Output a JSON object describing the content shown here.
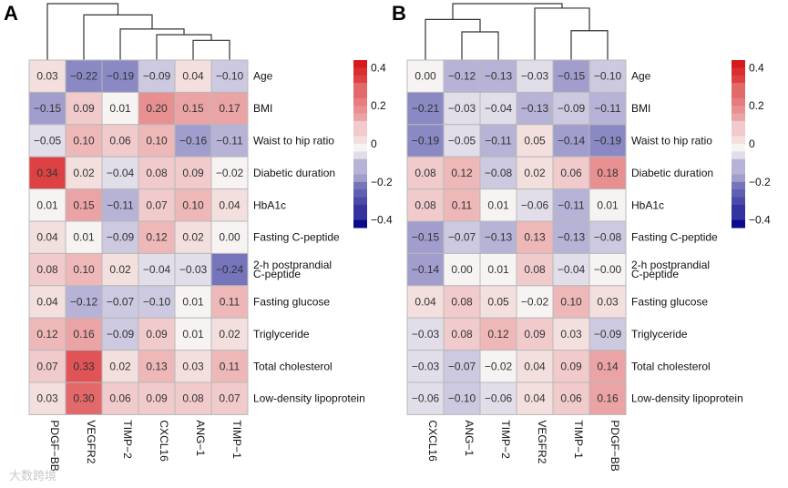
{
  "chart_data": [
    {
      "type": "heatmap",
      "panel": "A",
      "columns": [
        "PDGF−BB",
        "VEGFR2",
        "TIMP−2",
        "CXCL16",
        "ANG−1",
        "TIMP−1"
      ],
      "rows": [
        "Age",
        "BMI",
        "Waist to hip ratio",
        "Diabetic duration",
        "HbA1c",
        "Fasting C-peptide",
        "2-h postprandial C-peptide",
        "Fasting glucose",
        "Triglyceride",
        "Total cholesterol",
        "Low-density lipoprotein"
      ],
      "values": [
        [
          0.03,
          -0.22,
          -0.19,
          -0.09,
          0.04,
          -0.1
        ],
        [
          -0.15,
          0.09,
          0.01,
          0.2,
          0.15,
          0.17
        ],
        [
          -0.05,
          0.1,
          0.06,
          0.1,
          -0.16,
          -0.11
        ],
        [
          0.34,
          0.02,
          -0.04,
          0.08,
          0.09,
          -0.02
        ],
        [
          0.01,
          0.15,
          -0.11,
          0.07,
          0.1,
          0.04
        ],
        [
          0.04,
          0.01,
          -0.09,
          0.12,
          0.02,
          0.0
        ],
        [
          0.08,
          0.1,
          0.02,
          -0.04,
          -0.03,
          -0.24
        ],
        [
          0.04,
          -0.12,
          -0.07,
          -0.1,
          0.01,
          0.11
        ],
        [
          0.12,
          0.16,
          -0.09,
          0.09,
          0.01,
          0.02
        ],
        [
          0.07,
          0.33,
          0.02,
          0.13,
          0.03,
          0.11
        ],
        [
          0.03,
          0.3,
          0.06,
          0.09,
          0.08,
          0.07
        ]
      ],
      "labels": [
        "0.03",
        "−0.22",
        "−0.19",
        "−0.09",
        "0.04",
        "−0.10",
        "−0.15",
        "0.09",
        "0.01",
        "0.20",
        "0.15",
        "0.17",
        "−0.05",
        "0.10",
        "0.06",
        "0.10",
        "−0.16",
        "−0.11",
        "0.34",
        "0.02",
        "−0.04",
        "0.08",
        "0.09",
        "−0.02",
        "0.01",
        "0.15",
        "−0.11",
        "0.07",
        "0.10",
        "0.04",
        "0.04",
        "0.01",
        "−0.09",
        "0.12",
        "0.02",
        "0.00",
        "0.08",
        "0.10",
        "0.02",
        "−0.04",
        "−0.03",
        "−0.24",
        "0.04",
        "−0.12",
        "−0.07",
        "−0.10",
        "0.01",
        "0.11",
        "0.12",
        "0.16",
        "−0.09",
        "0.09",
        "0.01",
        "0.02",
        "0.07",
        "0.33",
        "0.02",
        "0.13",
        "0.03",
        "0.11",
        "0.03",
        "0.30",
        "0.06",
        "0.09",
        "0.08",
        "0.07"
      ],
      "dendrogram": [
        [
          4,
          5,
          0.35
        ],
        [
          3,
          6,
          0.45
        ],
        [
          2,
          7,
          0.55
        ],
        [
          1,
          8,
          0.8
        ],
        [
          0,
          9,
          1.0
        ]
      ],
      "legend": {
        "ticks": [
          "0.4",
          "0.2",
          "0",
          "−0.2",
          "−0.4"
        ],
        "tick_values": [
          0.4,
          0.2,
          0,
          -0.2,
          -0.4
        ],
        "range": [
          -0.44,
          0.44
        ]
      }
    },
    {
      "type": "heatmap",
      "panel": "B",
      "columns": [
        "CXCL16",
        "ANG−1",
        "TIMP−2",
        "VEGFR2",
        "TIMP−1",
        "PDGF−BB"
      ],
      "rows": [
        "Age",
        "BMI",
        "Waist to hip ratio",
        "Diabetic duration",
        "HbA1c",
        "Fasting C-peptide",
        "2-h postprandial C-peptide",
        "Fasting glucose",
        "Triglyceride",
        "Total cholesterol",
        "Low-density lipoprotein"
      ],
      "values": [
        [
          0.0,
          -0.12,
          -0.13,
          -0.03,
          -0.15,
          -0.1
        ],
        [
          -0.21,
          -0.03,
          -0.04,
          -0.13,
          -0.09,
          -0.11
        ],
        [
          -0.19,
          -0.05,
          -0.11,
          0.05,
          -0.14,
          -0.19
        ],
        [
          0.08,
          0.12,
          -0.08,
          0.02,
          0.06,
          0.18
        ],
        [
          0.08,
          0.11,
          0.01,
          -0.06,
          -0.11,
          0.01
        ],
        [
          -0.15,
          -0.07,
          -0.13,
          0.13,
          -0.13,
          -0.08
        ],
        [
          -0.14,
          0.0,
          0.01,
          0.08,
          -0.04,
          -0.0
        ],
        [
          0.04,
          0.08,
          0.05,
          -0.02,
          0.1,
          0.03
        ],
        [
          -0.03,
          0.08,
          0.12,
          0.09,
          0.03,
          -0.09
        ],
        [
          -0.03,
          -0.07,
          -0.02,
          0.04,
          0.09,
          0.14
        ],
        [
          -0.06,
          -0.1,
          -0.06,
          0.04,
          0.06,
          0.16
        ]
      ],
      "labels": [
        "0.00",
        "−0.12",
        "−0.13",
        "−0.03",
        "−0.15",
        "−0.10",
        "−0.21",
        "−0.03",
        "−0.04",
        "−0.13",
        "−0.09",
        "−0.11",
        "−0.19",
        "−0.05",
        "−0.11",
        "0.05",
        "−0.14",
        "−0.19",
        "0.08",
        "0.12",
        "−0.08",
        "0.02",
        "0.06",
        "0.18",
        "0.08",
        "0.11",
        "0.01",
        "−0.06",
        "−0.11",
        "0.01",
        "−0.15",
        "−0.07",
        "−0.13",
        "0.13",
        "−0.13",
        "−0.08",
        "−0.14",
        "0.00",
        "0.01",
        "0.08",
        "−0.04",
        "−0.00",
        "0.04",
        "0.08",
        "0.05",
        "−0.02",
        "0.10",
        "0.03",
        "−0.03",
        "0.08",
        "0.12",
        "0.09",
        "0.03",
        "−0.09",
        "−0.03",
        "−0.07",
        "−0.02",
        "0.04",
        "0.09",
        "0.14",
        "−0.06",
        "−0.10",
        "−0.06",
        "0.04",
        "0.06",
        "0.16"
      ],
      "dendrogram": [
        [
          1,
          2,
          0.5
        ],
        [
          4,
          5,
          0.52
        ],
        [
          0,
          6,
          0.72
        ],
        [
          3,
          7,
          0.92
        ],
        [
          8,
          9,
          1.0
        ]
      ],
      "legend": {
        "ticks": [
          "0.4",
          "0.2",
          "0",
          "−0.2",
          "−0.4"
        ],
        "tick_values": [
          0.4,
          0.2,
          0,
          -0.2,
          -0.4
        ],
        "range": [
          -0.44,
          0.44
        ]
      }
    }
  ],
  "colors": {
    "high": "#d7191c",
    "mid": "#f7f3f3",
    "low": "#0a0a8c",
    "grid": "#b8b8b8",
    "dendro": "#333333"
  },
  "watermark": "大数跨境"
}
